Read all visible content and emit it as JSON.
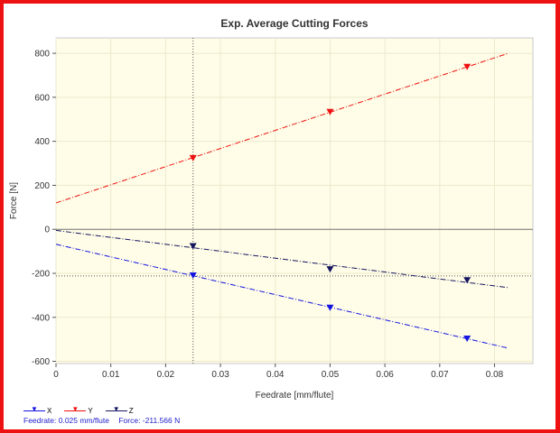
{
  "chart_data": {
    "type": "line",
    "title": "Exp. Average Cutting Forces",
    "xlabel": "Feedrate [mm/flute]",
    "ylabel": "Force [N]",
    "xlim": [
      0,
      0.087
    ],
    "ylim": [
      -610,
      870
    ],
    "xticks": [
      0,
      0.01,
      0.02,
      0.03,
      0.04,
      0.05,
      0.06,
      0.07,
      0.08
    ],
    "xtick_labels": [
      "0",
      "0.01",
      "0.02",
      "0.03",
      "0.04",
      "0.05",
      "0.06",
      "0.07",
      "0.08"
    ],
    "yticks": [
      -600,
      -400,
      -200,
      0,
      200,
      400,
      600,
      800
    ],
    "ytick_labels": [
      "-600",
      "-400",
      "-200",
      "0",
      "200",
      "400",
      "600",
      "800"
    ],
    "grid": true,
    "legend_position": "bottom-left",
    "cursor": {
      "x": 0.025,
      "y": -211.566
    },
    "series": [
      {
        "name": "X",
        "color": "#1515e0",
        "points": {
          "x": [
            0.025,
            0.05,
            0.075
          ],
          "y": [
            -208,
            -355,
            -495
          ]
        },
        "fit": {
          "x": [
            0,
            0.0825
          ],
          "y": [
            -68,
            -540
          ]
        }
      },
      {
        "name": "Y",
        "color": "#ee1111",
        "points": {
          "x": [
            0.025,
            0.05,
            0.075
          ],
          "y": [
            325,
            535,
            740
          ]
        },
        "fit": {
          "x": [
            0,
            0.0825
          ],
          "y": [
            120,
            800
          ]
        }
      },
      {
        "name": "Z",
        "color": "#151560",
        "points": {
          "x": [
            0.025,
            0.05,
            0.075
          ],
          "y": [
            -75,
            -180,
            -230
          ]
        },
        "fit": {
          "x": [
            0,
            0.0825
          ],
          "y": [
            -5,
            -265
          ]
        }
      }
    ]
  },
  "readout": {
    "feedrate": "Feedrate: 0.025 mm/flute",
    "force": "Force: -211.566 N"
  }
}
